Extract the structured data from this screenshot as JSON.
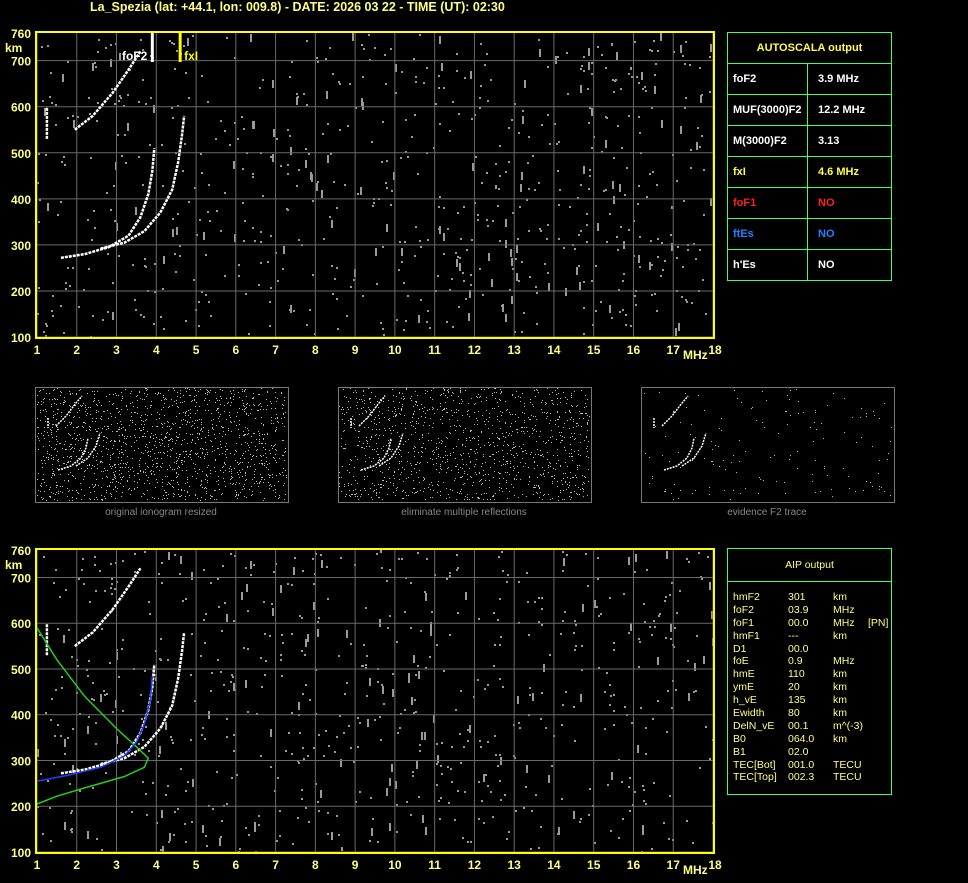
{
  "header": {
    "title": "La_Spezia (lat: +44.1, lon: 009.8) - DATE: 2026 03 22 - TIME (UT): 02:30"
  },
  "chart_data": [
    {
      "type": "scatter",
      "title": "",
      "xlabel": "MHz",
      "ylabel": "km",
      "xlim": [
        1,
        18
      ],
      "ylim": [
        100,
        760
      ],
      "x_ticks": [
        "1",
        "2",
        "3",
        "4",
        "5",
        "6",
        "7",
        "8",
        "9",
        "10",
        "11",
        "12",
        "13",
        "14",
        "15",
        "16",
        "17",
        "18"
      ],
      "y_ticks": [
        "100",
        "200",
        "300",
        "400",
        "500",
        "600",
        "700",
        "760"
      ],
      "grid": true,
      "markers": [
        {
          "label": "foF2",
          "x": 3.9,
          "color": "#ffffff"
        },
        {
          "label": "fxI",
          "x": 4.6,
          "color": "#ffff00"
        }
      ]
    },
    {
      "type": "line",
      "title": "",
      "xlabel": "MHz",
      "ylabel": "km",
      "xlim": [
        1,
        18
      ],
      "ylim": [
        100,
        760
      ],
      "x_ticks": [
        "1",
        "2",
        "3",
        "4",
        "5",
        "6",
        "7",
        "8",
        "9",
        "10",
        "11",
        "12",
        "13",
        "14",
        "15",
        "16",
        "17",
        "18"
      ],
      "y_ticks": [
        "100",
        "200",
        "300",
        "400",
        "500",
        "600",
        "700",
        "760"
      ],
      "grid": true,
      "profile_color": "#2040ff",
      "model_color": "#20d020"
    }
  ],
  "autoscala": {
    "title": "AUTOSCALA output",
    "rows": [
      {
        "key": "foF2",
        "value": "3.9 MHz",
        "color": "#ffffff"
      },
      {
        "key": "MUF(3000)F2",
        "value": "12.2 MHz",
        "color": "#ffffff"
      },
      {
        "key": "M(3000)F2",
        "value": "3.13",
        "color": "#ffffff"
      },
      {
        "key": "fxI",
        "value": "4.6 MHz",
        "color": "#ffff40"
      },
      {
        "key": "foF1",
        "value": "NO",
        "color": "#ff2020"
      },
      {
        "key": "ftEs",
        "value": "NO",
        "color": "#2080ff"
      },
      {
        "key": "h'Es",
        "value": "NO",
        "color": "#ffffff"
      }
    ]
  },
  "thumbnails": [
    {
      "caption": "original ionogram resized"
    },
    {
      "caption": "eliminate multiple reflections"
    },
    {
      "caption": "evidence F2 trace"
    }
  ],
  "aip": {
    "title": "AIP output",
    "rows": [
      [
        "hmF2",
        "301",
        "km",
        ""
      ],
      [
        "foF2",
        "03.9",
        "MHz",
        ""
      ],
      [
        "foF1",
        "00.0",
        "MHz",
        "[PN]"
      ],
      [
        "hmF1",
        "---",
        "km",
        ""
      ],
      [
        "D1",
        "00.0",
        "",
        ""
      ],
      [
        "foE",
        "0.9",
        "MHz",
        ""
      ],
      [
        "hmE",
        "110",
        "km",
        ""
      ],
      [
        "ymE",
        "20",
        "km",
        ""
      ],
      [
        "h_vE",
        "135",
        "km",
        ""
      ],
      [
        "Ewidth",
        "80",
        "km",
        ""
      ],
      [
        "DelN_vE",
        "00.1",
        "m^(-3)",
        ""
      ],
      [
        "B0",
        "064.0",
        "km",
        ""
      ],
      [
        "B1",
        "02.0",
        "",
        ""
      ],
      [
        "TEC[Bot]",
        "001.0",
        "TECU",
        ""
      ],
      [
        "TEC[Top]",
        "002.3",
        "TECU",
        ""
      ]
    ]
  }
}
